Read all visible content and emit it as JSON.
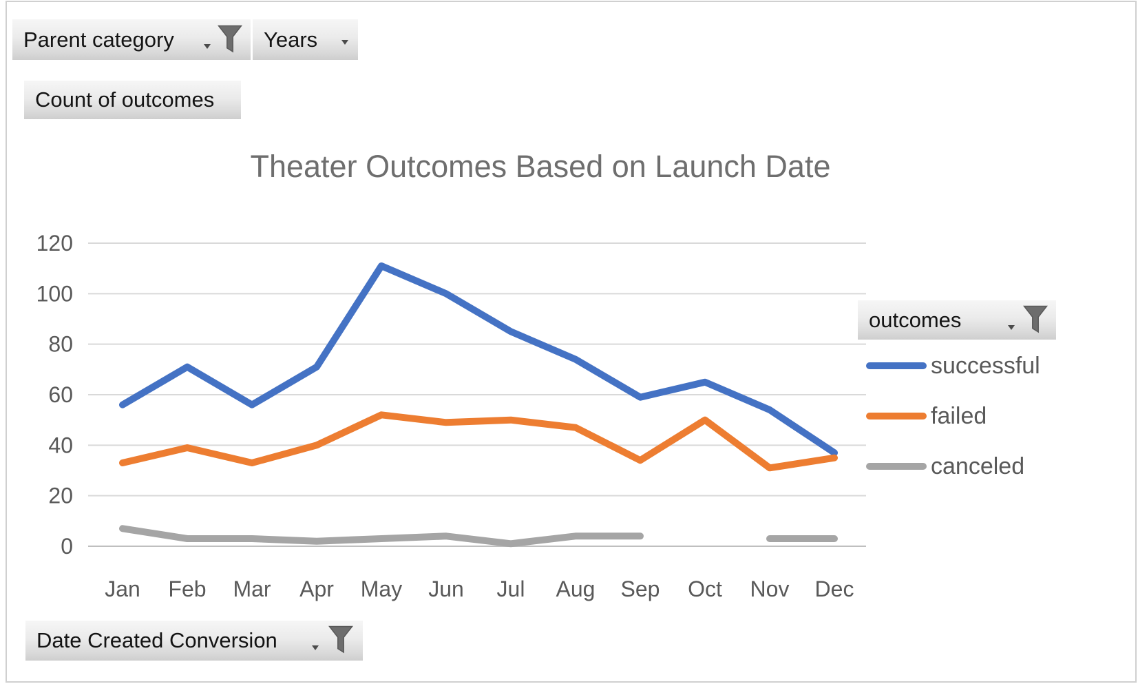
{
  "field_buttons": {
    "parent_category": {
      "label": "Parent category",
      "dropdown": true,
      "filter_icon": true
    },
    "years": {
      "label": "Years",
      "dropdown": true,
      "filter_icon": false
    },
    "values_field": {
      "label": "Count of outcomes",
      "dropdown": false,
      "filter_icon": false
    },
    "legend_field": {
      "label": "outcomes",
      "dropdown": true,
      "filter_icon": true
    },
    "axis_field": {
      "label": "Date Created Conversion",
      "dropdown": true,
      "filter_icon": true
    }
  },
  "icons": {
    "funnel": "filter-funnel-icon",
    "caret": "caret-down-icon"
  },
  "chart_data": {
    "type": "line",
    "title": "Theater Outcomes Based on Launch Date",
    "categories": [
      "Jan",
      "Feb",
      "Mar",
      "Apr",
      "May",
      "Jun",
      "Jul",
      "Aug",
      "Sep",
      "Oct",
      "Nov",
      "Dec"
    ],
    "series": [
      {
        "name": "successful",
        "color": "#4472C4",
        "values": [
          56,
          71,
          56,
          71,
          111,
          100,
          85,
          74,
          59,
          65,
          54,
          37
        ]
      },
      {
        "name": "failed",
        "color": "#ED7D31",
        "values": [
          33,
          39,
          33,
          40,
          52,
          49,
          50,
          47,
          34,
          50,
          31,
          35
        ]
      },
      {
        "name": "canceled",
        "color": "#A5A5A5",
        "values": [
          7,
          3,
          3,
          2,
          3,
          4,
          1,
          4,
          4,
          null,
          3,
          3
        ]
      }
    ],
    "xlabel": "",
    "ylabel": "",
    "ylim": [
      0,
      120
    ],
    "yticks": [
      0,
      20,
      40,
      60,
      80,
      100,
      120
    ],
    "grid": true,
    "legend_position": "right",
    "colors": {
      "gridline": "#d9d9d9",
      "axis_line": "#bfbfbf",
      "tick_label": "#595959",
      "title": "#6e6e6e"
    }
  }
}
